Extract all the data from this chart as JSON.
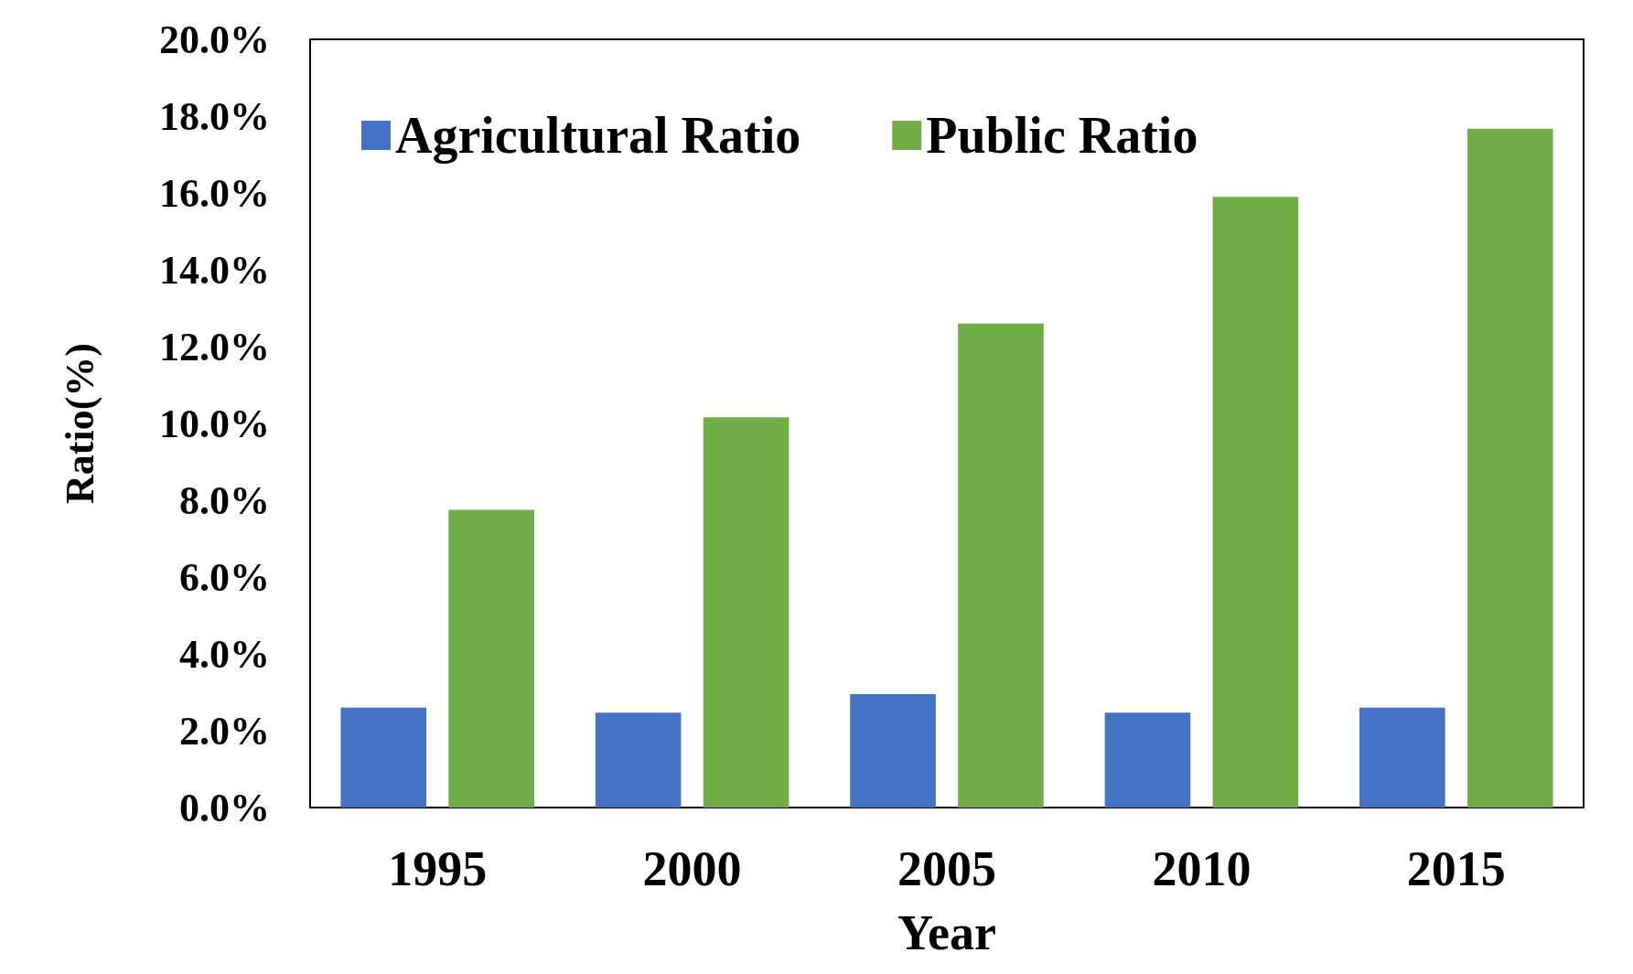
{
  "chart_data": {
    "type": "bar",
    "xlabel": "Year",
    "ylabel": "Ratio(%)",
    "categories": [
      "1995",
      "2000",
      "2005",
      "2010",
      "2015"
    ],
    "series": [
      {
        "name": "Agricultural Ratio",
        "color": "#4472c4",
        "values": [
          2.6,
          2.47,
          2.95,
          2.47,
          2.6
        ]
      },
      {
        "name": "Public Ratio",
        "color": "#70ad47",
        "values": [
          7.75,
          10.16,
          12.6,
          15.9,
          17.67
        ]
      }
    ],
    "ylim": [
      0,
      20
    ],
    "yticks": [
      {
        "value": 0,
        "label": "0.0%"
      },
      {
        "value": 2,
        "label": "2.0%"
      },
      {
        "value": 4,
        "label": "4.0%"
      },
      {
        "value": 6,
        "label": "6.0%"
      },
      {
        "value": 8,
        "label": "8.0%"
      },
      {
        "value": 10,
        "label": "10.0%"
      },
      {
        "value": 12,
        "label": "12.0%"
      },
      {
        "value": 14,
        "label": "14.0%"
      },
      {
        "value": 16,
        "label": "16.0%"
      },
      {
        "value": 18,
        "label": "18.0%"
      },
      {
        "value": 20,
        "label": "20.0%"
      }
    ],
    "grid": false,
    "legend": "top left"
  }
}
